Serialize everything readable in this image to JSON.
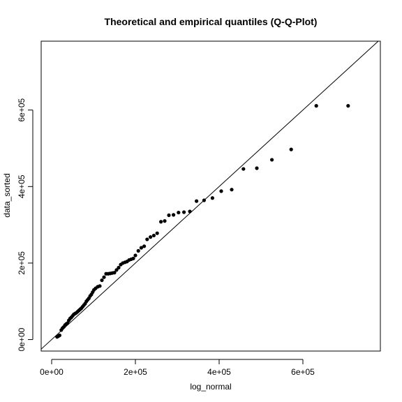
{
  "chart_data": {
    "type": "scatter",
    "title": "Theoretical and empirical quantiles (Q-Q-Plot)",
    "xlabel": "log_normal",
    "ylabel": "data_sorted",
    "xlim": [
      -25000,
      785000
    ],
    "ylim": [
      -30000,
      780000
    ],
    "xticks": [
      {
        "value": 0,
        "label": "0e+00"
      },
      {
        "value": 200000,
        "label": "2e+05"
      },
      {
        "value": 400000,
        "label": "4e+05"
      },
      {
        "value": 600000,
        "label": "6e+05"
      }
    ],
    "yticks": [
      {
        "value": 0,
        "label": "0e+00"
      },
      {
        "value": 200000,
        "label": "2e+05"
      },
      {
        "value": 400000,
        "label": "4e+05"
      },
      {
        "value": 600000,
        "label": "6e+05"
      }
    ],
    "reference_line": {
      "slope": 1,
      "intercept": 0
    },
    "point_color": "#000000",
    "line_color": "#000000",
    "grid": false,
    "x": [
      13000,
      16000,
      19000,
      23000,
      26000,
      29000,
      32000,
      35000,
      38000,
      41000,
      44000,
      47000,
      50000,
      53000,
      56000,
      59000,
      62000,
      65000,
      68000,
      71000,
      74000,
      77000,
      80000,
      83000,
      86000,
      89000,
      92000,
      95000,
      98000,
      101000,
      105000,
      110000,
      115000,
      120000,
      125000,
      130000,
      135000,
      140000,
      145000,
      150000,
      155000,
      160000,
      165000,
      170000,
      175000,
      180000,
      185000,
      190000,
      195000,
      200000,
      207000,
      214000,
      221000,
      228000,
      236000,
      244000,
      252000,
      261000,
      270000,
      280000,
      291000,
      303000,
      316000,
      330000,
      346000,
      364000,
      384000,
      405000,
      430000,
      458000,
      490000,
      526000,
      572000,
      632000,
      708000
    ],
    "y": [
      7000,
      9000,
      11000,
      25000,
      30000,
      33000,
      38000,
      41000,
      43000,
      50000,
      55000,
      58000,
      62000,
      66000,
      68000,
      70000,
      73000,
      76000,
      79000,
      82000,
      86000,
      90000,
      94000,
      100000,
      104000,
      108000,
      114000,
      118000,
      124000,
      130000,
      134000,
      138000,
      140000,
      155000,
      163000,
      172000,
      172000,
      173000,
      174000,
      175000,
      182000,
      188000,
      196000,
      200000,
      202000,
      204000,
      208000,
      210000,
      212000,
      220000,
      232000,
      240000,
      244000,
      262000,
      268000,
      272000,
      278000,
      308000,
      310000,
      325000,
      326000,
      332000,
      333000,
      335000,
      362000,
      364000,
      370000,
      388000,
      392000,
      446000,
      448000,
      470000,
      497000,
      611000,
      611000
    ]
  }
}
